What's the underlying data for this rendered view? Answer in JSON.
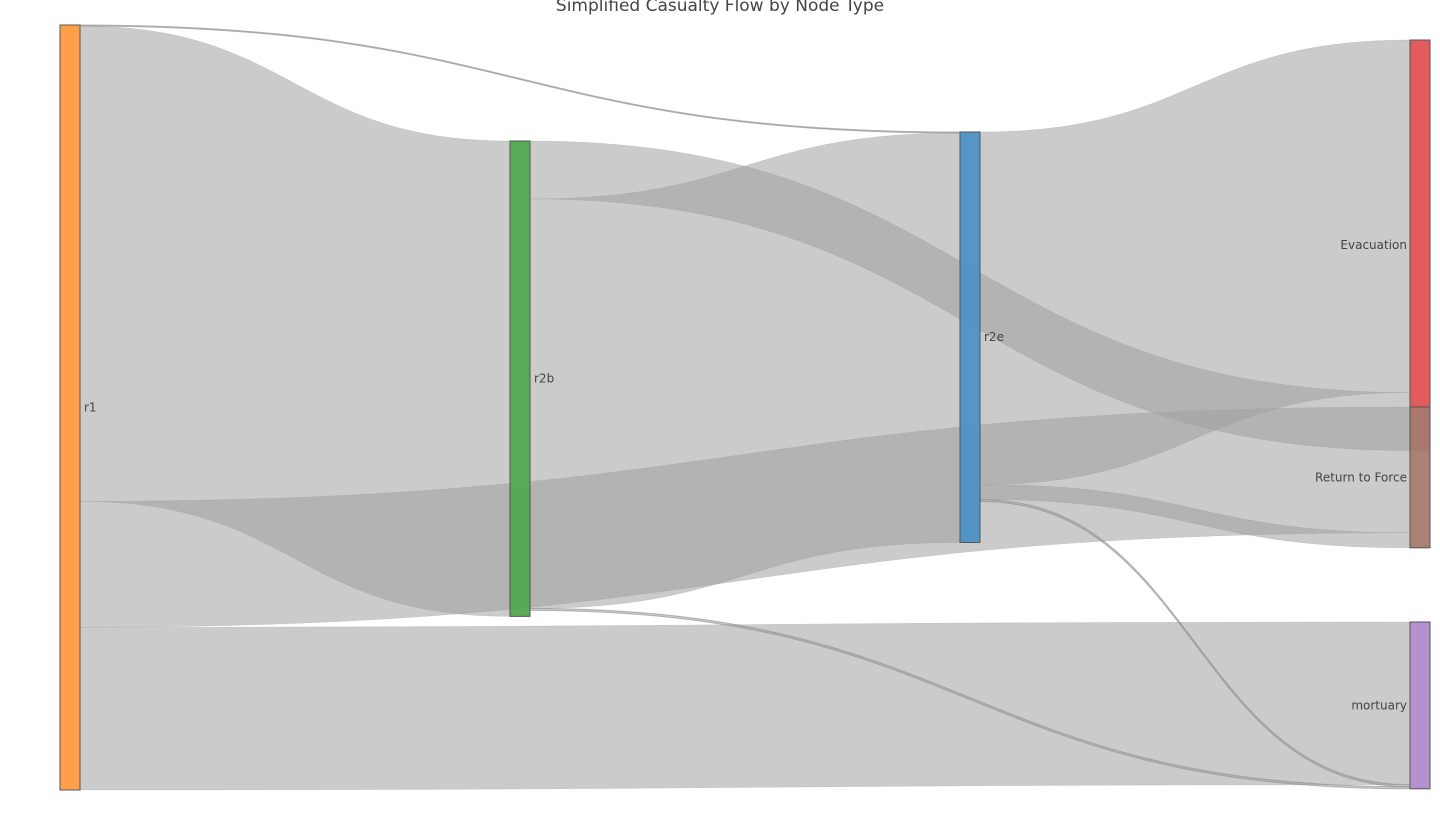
{
  "title": "Simplified Casualty Flow by Node Type",
  "chart_data": {
    "type": "sankey",
    "nodes": [
      {
        "id": "r1",
        "label": "r1",
        "color": "#ff9a40"
      },
      {
        "id": "r2b",
        "label": "r2b",
        "color": "#50a74e"
      },
      {
        "id": "r2e",
        "label": "r2e",
        "color": "#4a90c4"
      },
      {
        "id": "evac",
        "label": "Evacuation",
        "color": "#e05255"
      },
      {
        "id": "rtf",
        "label": "Return to Force",
        "color": "#a67a6e"
      },
      {
        "id": "mort",
        "label": "mortuary",
        "color": "#b08bcc"
      }
    ],
    "links": [
      {
        "source": "r1",
        "target": "r2b",
        "value": 476
      },
      {
        "source": "r1",
        "target": "r2e",
        "value": 1
      },
      {
        "source": "r1",
        "target": "rtf",
        "value": 126
      },
      {
        "source": "r1",
        "target": "mort",
        "value": 163
      },
      {
        "source": "r2b",
        "target": "r2e",
        "value": 410
      },
      {
        "source": "r2b",
        "target": "evac",
        "value": 58
      },
      {
        "source": "r2b",
        "target": "mort",
        "value": 2
      },
      {
        "source": "r2e",
        "target": "evac",
        "value": 353
      },
      {
        "source": "r2e",
        "target": "rtf",
        "value": 15
      },
      {
        "source": "r2e",
        "target": "mort",
        "value": 2
      }
    ],
    "link_color": "rgba(160,160,160,0.55)"
  }
}
